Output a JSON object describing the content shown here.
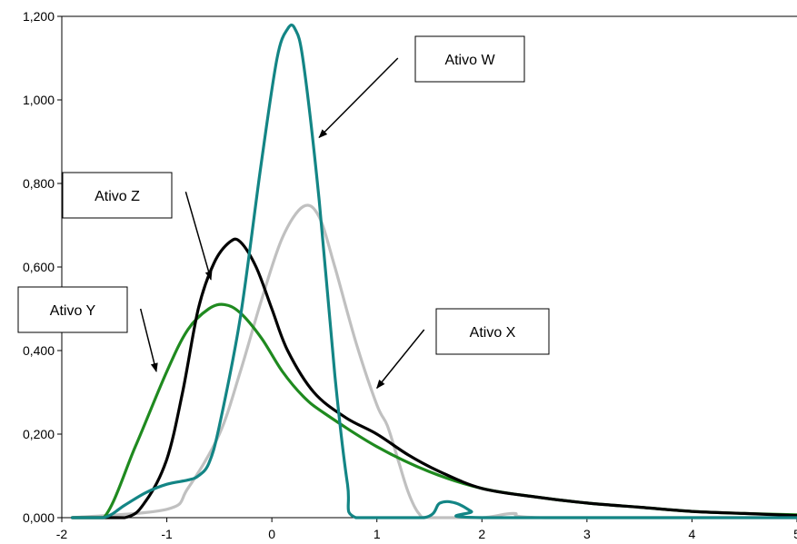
{
  "chart_data": {
    "type": "line",
    "title": "",
    "xlabel": "",
    "ylabel": "",
    "xlim": [
      -2,
      5
    ],
    "ylim": [
      0,
      1.2
    ],
    "grid": false,
    "x_ticks": [
      {
        "value": -2,
        "label": "-2"
      },
      {
        "value": -1,
        "label": "-1"
      },
      {
        "value": 0,
        "label": "0"
      },
      {
        "value": 1,
        "label": "1"
      },
      {
        "value": 2,
        "label": "2"
      },
      {
        "value": 3,
        "label": "3"
      },
      {
        "value": 4,
        "label": "4"
      },
      {
        "value": 5,
        "label": "5"
      }
    ],
    "y_ticks": [
      {
        "value": 0,
        "label": "0,000"
      },
      {
        "value": 0.2,
        "label": "0,200"
      },
      {
        "value": 0.4,
        "label": "0,400"
      },
      {
        "value": 0.6,
        "label": "0,600"
      },
      {
        "value": 0.8,
        "label": "0,800"
      },
      {
        "value": 1.0,
        "label": "1,000"
      },
      {
        "value": 1.2,
        "label": "1,200"
      }
    ],
    "series": [
      {
        "name": "Ativo X",
        "color": "#c0c0c0",
        "points": [
          [
            -1.9,
            0
          ],
          [
            -1.0,
            0.02
          ],
          [
            -0.8,
            0.07
          ],
          [
            -0.5,
            0.2
          ],
          [
            -0.3,
            0.35
          ],
          [
            -0.1,
            0.52
          ],
          [
            0.1,
            0.67
          ],
          [
            0.3,
            0.745
          ],
          [
            0.45,
            0.72
          ],
          [
            0.6,
            0.6
          ],
          [
            0.8,
            0.42
          ],
          [
            1.0,
            0.27
          ],
          [
            1.1,
            0.22
          ],
          [
            1.2,
            0.14
          ],
          [
            1.3,
            0.06
          ],
          [
            1.4,
            0.01
          ],
          [
            1.5,
            0.0
          ],
          [
            2.0,
            0.0
          ],
          [
            2.3,
            0.01
          ],
          [
            2.6,
            0.0
          ],
          [
            5.0,
            0.0
          ]
        ]
      },
      {
        "name": "Ativo Y",
        "color": "#1f8a1f",
        "points": [
          [
            -1.9,
            0
          ],
          [
            -1.6,
            0
          ],
          [
            -1.3,
            0.17
          ],
          [
            -1.0,
            0.35
          ],
          [
            -0.8,
            0.45
          ],
          [
            -0.6,
            0.5
          ],
          [
            -0.45,
            0.51
          ],
          [
            -0.3,
            0.49
          ],
          [
            -0.1,
            0.43
          ],
          [
            0.1,
            0.35
          ],
          [
            0.3,
            0.29
          ],
          [
            0.5,
            0.25
          ],
          [
            1.0,
            0.17
          ],
          [
            1.5,
            0.11
          ],
          [
            2.0,
            0.07
          ],
          [
            2.5,
            0.05
          ],
          [
            3.0,
            0.035
          ],
          [
            3.5,
            0.025
          ],
          [
            4.0,
            0.015
          ],
          [
            4.5,
            0.01
          ],
          [
            5.0,
            0.007
          ]
        ]
      },
      {
        "name": "Ativo Z",
        "color": "#000000",
        "points": [
          [
            -1.9,
            0
          ],
          [
            -1.4,
            0
          ],
          [
            -1.2,
            0.04
          ],
          [
            -1.0,
            0.14
          ],
          [
            -0.85,
            0.3
          ],
          [
            -0.7,
            0.5
          ],
          [
            -0.55,
            0.61
          ],
          [
            -0.4,
            0.66
          ],
          [
            -0.3,
            0.66
          ],
          [
            -0.15,
            0.6
          ],
          [
            0.0,
            0.5
          ],
          [
            0.15,
            0.4
          ],
          [
            0.4,
            0.3
          ],
          [
            0.7,
            0.24
          ],
          [
            1.0,
            0.2
          ],
          [
            1.3,
            0.15
          ],
          [
            1.6,
            0.11
          ],
          [
            2.0,
            0.07
          ],
          [
            2.5,
            0.05
          ],
          [
            3.0,
            0.035
          ],
          [
            3.5,
            0.025
          ],
          [
            4.0,
            0.015
          ],
          [
            4.5,
            0.01
          ],
          [
            5.0,
            0.005
          ]
        ]
      },
      {
        "name": "Ativo W",
        "color": "#138585",
        "points": [
          [
            -1.9,
            0
          ],
          [
            -1.6,
            0
          ],
          [
            -1.4,
            0.03
          ],
          [
            -1.2,
            0.06
          ],
          [
            -1.0,
            0.08
          ],
          [
            -0.8,
            0.09
          ],
          [
            -0.7,
            0.1
          ],
          [
            -0.6,
            0.13
          ],
          [
            -0.5,
            0.22
          ],
          [
            -0.3,
            0.48
          ],
          [
            -0.1,
            0.85
          ],
          [
            0.05,
            1.1
          ],
          [
            0.15,
            1.17
          ],
          [
            0.22,
            1.17
          ],
          [
            0.3,
            1.09
          ],
          [
            0.45,
            0.76
          ],
          [
            0.6,
            0.34
          ],
          [
            0.72,
            0.08
          ],
          [
            0.8,
            0.0
          ],
          [
            1.45,
            0.0
          ],
          [
            1.6,
            0.035
          ],
          [
            1.75,
            0.035
          ],
          [
            1.9,
            0.015
          ],
          [
            2.0,
            0.0
          ],
          [
            5.0,
            0.0
          ]
        ]
      }
    ],
    "annotations": [
      {
        "text": "Ativo W",
        "arrow_tail": [
          1.2,
          1.1
        ],
        "arrow_head": [
          0.45,
          0.91
        ]
      },
      {
        "text": "Ativo Z",
        "arrow_tail": [
          -0.82,
          0.78
        ],
        "arrow_head": [
          -0.58,
          0.57
        ]
      },
      {
        "text": "Ativo Y",
        "arrow_tail": [
          -1.25,
          0.5
        ],
        "arrow_head": [
          -1.1,
          0.35
        ]
      },
      {
        "text": "Ativo X",
        "arrow_tail": [
          1.45,
          0.45
        ],
        "arrow_head": [
          1.0,
          0.31
        ]
      }
    ]
  }
}
